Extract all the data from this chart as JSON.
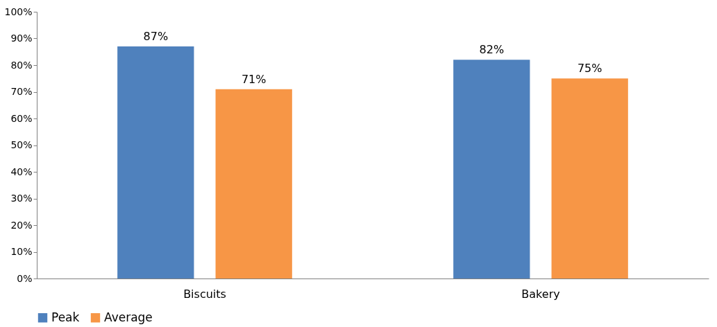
{
  "chart_data": {
    "type": "bar",
    "categories": [
      "Biscuits",
      "Bakery"
    ],
    "series": [
      {
        "name": "Peak",
        "color": "#4f81bd",
        "values": [
          87,
          82
        ],
        "value_labels": [
          "87%",
          "82%"
        ]
      },
      {
        "name": "Average",
        "color": "#f79646",
        "values": [
          71,
          75
        ],
        "value_labels": [
          "71%",
          "75%"
        ]
      }
    ],
    "ylim": [
      0,
      100
    ],
    "yticks": [
      {
        "value": 0,
        "label": "0%"
      },
      {
        "value": 10,
        "label": "10%"
      },
      {
        "value": 20,
        "label": "20%"
      },
      {
        "value": 30,
        "label": "30%"
      },
      {
        "value": 40,
        "label": "40%"
      },
      {
        "value": 50,
        "label": "50%"
      },
      {
        "value": 60,
        "label": "60%"
      },
      {
        "value": 70,
        "label": "70%"
      },
      {
        "value": 80,
        "label": "80%"
      },
      {
        "value": 90,
        "label": "90%"
      },
      {
        "value": 100,
        "label": "100%"
      }
    ],
    "grid": false,
    "legend": "bottom"
  }
}
